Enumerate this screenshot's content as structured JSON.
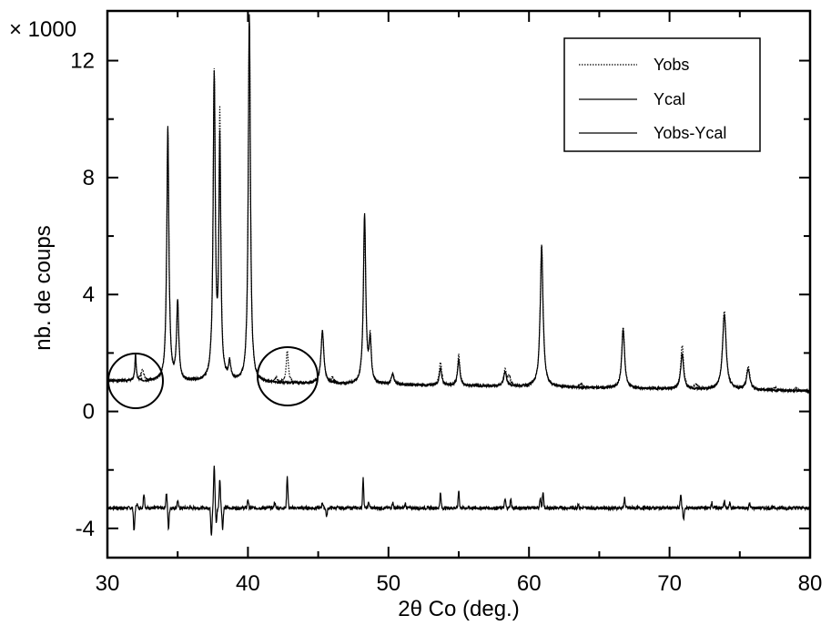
{
  "chart_data": {
    "type": "line",
    "xlabel": "2θ Co (deg.)",
    "ylabel": "nb. de coups",
    "y_multiplier_label": "× 1000",
    "xlim": [
      30,
      80
    ],
    "ylim": [
      -5,
      13.7
    ],
    "xticks": [
      "30",
      "40",
      "50",
      "60",
      "70",
      "80"
    ],
    "yticks": [
      "-4",
      "0",
      "4",
      "8",
      "12"
    ],
    "legend": {
      "placement": "top-right",
      "entries": [
        "Yobs",
        "Ycal",
        "Yobs-Ycal"
      ]
    },
    "grid": false,
    "series": [
      {
        "name": "Yobs",
        "style": "dotted",
        "baseline": 1.05,
        "baseline_end": 0.7,
        "peaks": [
          [
            32.0,
            0.8,
            0.06
          ],
          [
            32.5,
            0.35,
            0.12
          ],
          [
            34.3,
            8.6,
            0.09
          ],
          [
            35.0,
            2.6,
            0.09
          ],
          [
            37.6,
            10.4,
            0.09
          ],
          [
            38.0,
            8.9,
            0.08
          ],
          [
            38.7,
            0.6,
            0.09
          ],
          [
            40.1,
            12.3,
            0.09
          ],
          [
            42.0,
            0.15,
            0.1
          ],
          [
            42.8,
            1.1,
            0.09
          ],
          [
            45.3,
            1.8,
            0.12
          ],
          [
            46.0,
            0.15,
            0.1
          ],
          [
            48.3,
            5.6,
            0.1
          ],
          [
            48.7,
            1.5,
            0.09
          ],
          [
            50.3,
            0.35,
            0.12
          ],
          [
            53.7,
            0.8,
            0.1
          ],
          [
            55.0,
            1.05,
            0.1
          ],
          [
            58.3,
            0.55,
            0.12
          ],
          [
            58.6,
            0.3,
            0.1
          ],
          [
            60.9,
            4.9,
            0.12
          ],
          [
            63.7,
            0.1,
            0.12
          ],
          [
            66.7,
            2.1,
            0.12
          ],
          [
            70.9,
            1.5,
            0.12
          ],
          [
            71.9,
            0.15,
            0.12
          ],
          [
            73.9,
            2.7,
            0.15
          ],
          [
            75.6,
            0.8,
            0.14
          ],
          [
            77.5,
            0.1,
            0.12
          ],
          [
            79.0,
            0.1,
            0.12
          ]
        ]
      },
      {
        "name": "Ycal",
        "style": "solid",
        "baseline": 1.05,
        "baseline_end": 0.7,
        "peaks": [
          [
            32.0,
            0.9,
            0.06
          ],
          [
            34.3,
            8.7,
            0.09
          ],
          [
            35.0,
            2.7,
            0.09
          ],
          [
            37.6,
            10.3,
            0.09
          ],
          [
            38.0,
            8.1,
            0.08
          ],
          [
            38.7,
            0.6,
            0.09
          ],
          [
            40.1,
            12.6,
            0.09
          ],
          [
            45.3,
            1.8,
            0.12
          ],
          [
            48.3,
            5.8,
            0.1
          ],
          [
            48.7,
            1.4,
            0.09
          ],
          [
            50.3,
            0.35,
            0.12
          ],
          [
            53.7,
            0.6,
            0.1
          ],
          [
            55.0,
            0.9,
            0.1
          ],
          [
            58.3,
            0.5,
            0.12
          ],
          [
            60.9,
            4.8,
            0.12
          ],
          [
            66.7,
            2.0,
            0.12
          ],
          [
            70.9,
            1.2,
            0.12
          ],
          [
            73.9,
            2.6,
            0.15
          ],
          [
            75.6,
            0.7,
            0.14
          ]
        ]
      },
      {
        "name": "Yobs-Ycal",
        "style": "solid",
        "baseline": -3.3,
        "features": [
          [
            31.9,
            -0.8
          ],
          [
            32.1,
            0.15
          ],
          [
            32.6,
            0.5
          ],
          [
            34.2,
            0.5
          ],
          [
            34.35,
            -0.7
          ],
          [
            35.0,
            0.25
          ],
          [
            37.4,
            -0.9
          ],
          [
            37.6,
            1.4
          ],
          [
            37.75,
            -0.5
          ],
          [
            38.0,
            1.0
          ],
          [
            38.2,
            -0.7
          ],
          [
            40.0,
            0.3
          ],
          [
            41.9,
            0.2
          ],
          [
            42.8,
            1.1
          ],
          [
            45.3,
            0.2
          ],
          [
            45.6,
            -0.3
          ],
          [
            48.2,
            1.0
          ],
          [
            48.6,
            0.2
          ],
          [
            50.3,
            0.2
          ],
          [
            51.2,
            0.15
          ],
          [
            53.7,
            0.5
          ],
          [
            55.0,
            0.6
          ],
          [
            58.3,
            0.3
          ],
          [
            58.7,
            0.3
          ],
          [
            60.8,
            0.35
          ],
          [
            61.0,
            0.5
          ],
          [
            63.5,
            0.15
          ],
          [
            66.8,
            0.35
          ],
          [
            70.8,
            0.45
          ],
          [
            71.0,
            -0.4
          ],
          [
            73.0,
            0.2
          ],
          [
            73.9,
            0.25
          ],
          [
            74.3,
            0.2
          ],
          [
            75.7,
            0.15
          ]
        ]
      }
    ]
  }
}
